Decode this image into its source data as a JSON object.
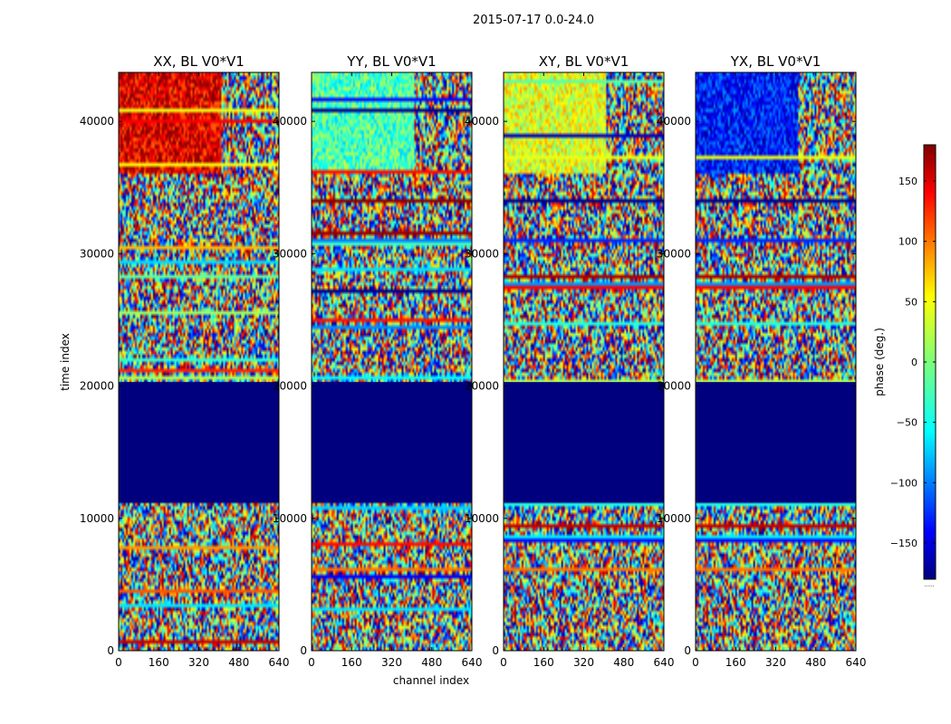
{
  "figure": {
    "suptitle": "2015-07-17 0.0-24.0"
  },
  "chart_data": {
    "type": "heatmap",
    "title": "2015-07-17 0.0-24.0",
    "xlabel": "channel index",
    "ylabel": "time index",
    "xlim": [
      0,
      640
    ],
    "ylim": [
      0,
      43700
    ],
    "xticks": [
      0,
      160,
      320,
      480,
      640
    ],
    "yticks": [
      0,
      10000,
      20000,
      30000,
      40000
    ],
    "panels": [
      {
        "title": "XX, BL V0*V1",
        "name": "xx"
      },
      {
        "title": "YY, BL V0*V1",
        "name": "yy"
      },
      {
        "title": "XY, BL V0*V1",
        "name": "xy"
      },
      {
        "title": "YX, BL V0*V1",
        "name": "yx"
      }
    ],
    "flagged_block_time_range": [
      11200,
      20300
    ],
    "flagged_block_value": -180,
    "colorbar": {
      "label": "phase (deg.)",
      "range": [
        -180,
        180
      ],
      "ticks": [
        150,
        100,
        50,
        0,
        -50,
        -100,
        -150
      ],
      "tick_labels": [
        "150",
        "100",
        "50",
        "0",
        "−50",
        "−100",
        "−150"
      ],
      "colormap": "jet",
      "extra_label": "......"
    },
    "colors": {
      "flagged": "#00007f",
      "axis": "#000000"
    }
  }
}
